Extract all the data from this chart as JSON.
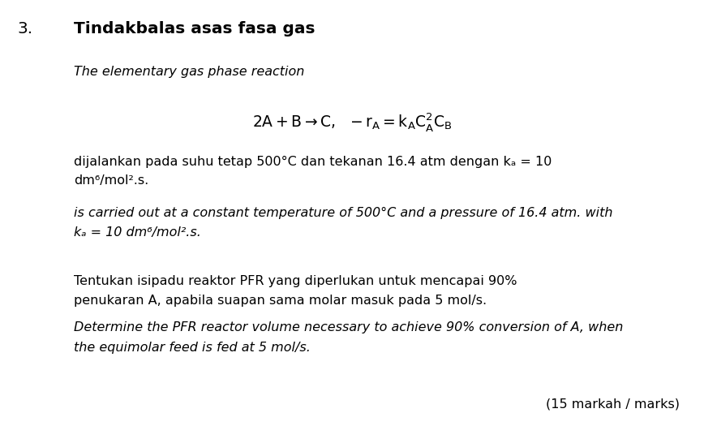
{
  "background_color": "#ffffff",
  "question_number": "3.",
  "title_malay": "Tindakbalas asas fasa gas",
  "title_english_italic": "The elementary gas phase reaction",
  "body_malay_line1": "dijalankan pada suhu tetap 500°C dan tekanan 16.4 atm dengan kₐ = 10",
  "body_malay_line2": "dm⁶/mol².s.",
  "body_eng_line1": "is carried out at a constant temperature of 500°C and a pressure of 16.4 atm. with",
  "body_eng_line2": "kₐ = 10 dm⁶/mol².s.",
  "q_malay_line1": "Tentukan isipadu reaktor PFR yang diperlukan untuk mencapai 90%",
  "q_malay_line2": "penukaran A, apabila suapan sama molar masuk pada 5 mol/s.",
  "q_eng_line1": "Determine the PFR reactor volume necessary to achieve 90% conversion of A, when",
  "q_eng_line2": "the equimolar feed is fed at 5 mol/s.",
  "marks": "(15 markah / marks)",
  "fig_width": 8.68,
  "fig_height": 5.25,
  "dpi": 100
}
